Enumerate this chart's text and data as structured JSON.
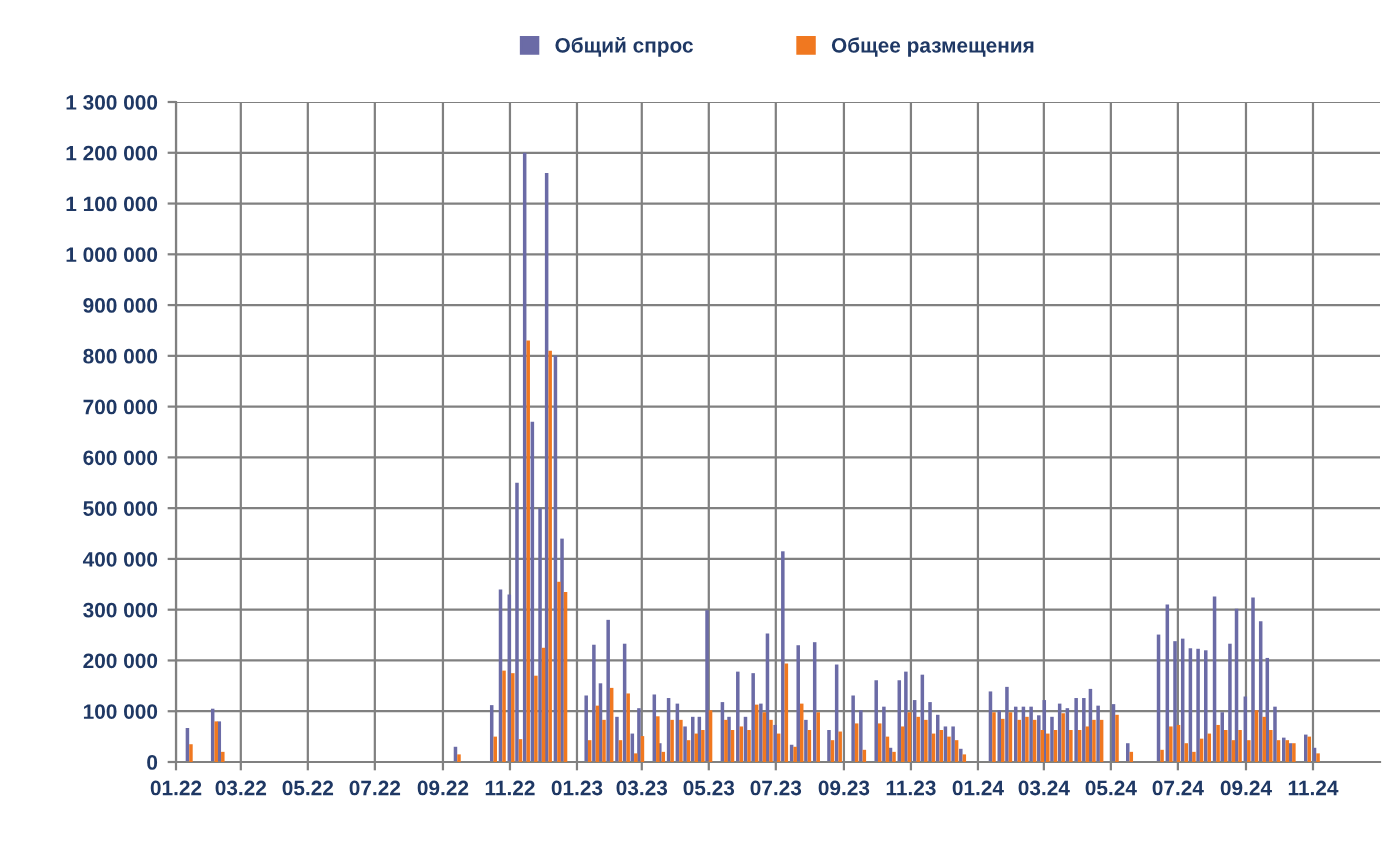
{
  "chart_data": {
    "type": "bar",
    "stacked": false,
    "legend": "top",
    "grid": true,
    "x": [
      "2022-01-13",
      "2022-02-05",
      "2022-02-11",
      "2022-09-14",
      "2022-10-17",
      "2022-10-25",
      "2022-11-02",
      "2022-11-09",
      "2022-11-16",
      "2022-11-23",
      "2022-11-30",
      "2022-12-06",
      "2022-12-14",
      "2022-12-20",
      "2023-01-11",
      "2023-01-18",
      "2023-01-24",
      "2023-01-31",
      "2023-02-08",
      "2023-02-15",
      "2023-02-22",
      "2023-02-28",
      "2023-03-14",
      "2023-03-19",
      "2023-03-27",
      "2023-04-04",
      "2023-04-11",
      "2023-04-18",
      "2023-04-24",
      "2023-05-01",
      "2023-05-15",
      "2023-05-21",
      "2023-05-29",
      "2023-06-05",
      "2023-06-12",
      "2023-06-19",
      "2023-06-25",
      "2023-07-02",
      "2023-07-09",
      "2023-07-17",
      "2023-07-23",
      "2023-07-30",
      "2023-08-07",
      "2023-08-20",
      "2023-08-27",
      "2023-09-11",
      "2023-09-18",
      "2023-10-02",
      "2023-10-09",
      "2023-10-15",
      "2023-10-23",
      "2023-10-29",
      "2023-11-06",
      "2023-11-13",
      "2023-11-20",
      "2023-11-27",
      "2023-12-04",
      "2023-12-11",
      "2023-12-18",
      "2024-01-14",
      "2024-01-22",
      "2024-01-29",
      "2024-02-06",
      "2024-02-13",
      "2024-02-20",
      "2024-02-27",
      "2024-03-03",
      "2024-03-10",
      "2024-03-17",
      "2024-03-24",
      "2024-04-01",
      "2024-04-08",
      "2024-04-14",
      "2024-04-21",
      "2024-05-05",
      "2024-05-18",
      "2024-06-15",
      "2024-06-23",
      "2024-06-30",
      "2024-07-07",
      "2024-07-14",
      "2024-07-21",
      "2024-07-28",
      "2024-08-05",
      "2024-08-12",
      "2024-08-19",
      "2024-08-25",
      "2024-09-02",
      "2024-09-09",
      "2024-09-16",
      "2024-09-22",
      "2024-09-29",
      "2024-10-07",
      "2024-10-13",
      "2024-10-27",
      "2024-11-04"
    ],
    "series": [
      {
        "name": "Общий спрос",
        "color": "#6b6ba6",
        "values": [
          67000,
          105000,
          80000,
          30000,
          112000,
          340000,
          330000,
          550000,
          1200000,
          670000,
          500000,
          1160000,
          800000,
          440000,
          131000,
          231000,
          155000,
          280000,
          89000,
          233000,
          56000,
          106000,
          133000,
          37000,
          126000,
          115000,
          70000,
          89000,
          89000,
          299000,
          118000,
          89000,
          178000,
          89000,
          175000,
          115000,
          253000,
          73000,
          415000,
          34000,
          230000,
          83000,
          236000,
          63000,
          192000,
          131000,
          102000,
          161000,
          109000,
          28000,
          161000,
          178000,
          122000,
          172000,
          118000,
          93000,
          70000,
          70000,
          26000,
          139000,
          102000,
          148000,
          109000,
          109000,
          109000,
          92000,
          122000,
          89000,
          115000,
          106000,
          126000,
          126000,
          144000,
          111000,
          114000,
          37000,
          251000,
          310000,
          238000,
          243000,
          224000,
          223000,
          220000,
          326000,
          98000,
          233000,
          302000,
          129000,
          324000,
          277000,
          205000,
          109000,
          48000,
          37000,
          54000,
          28000
        ]
      },
      {
        "name": "Общее размещения",
        "color": "#f07820",
        "values": [
          35000,
          80000,
          20000,
          15000,
          50000,
          180000,
          175000,
          45000,
          830000,
          170000,
          225000,
          810000,
          355000,
          335000,
          43000,
          111000,
          83000,
          146000,
          43000,
          135000,
          17000,
          51000,
          90000,
          20000,
          83000,
          83000,
          43000,
          56000,
          63000,
          102000,
          83000,
          63000,
          70000,
          63000,
          113000,
          98000,
          83000,
          56000,
          194000,
          30000,
          115000,
          63000,
          98000,
          43000,
          60000,
          76000,
          24000,
          76000,
          50000,
          20000,
          70000,
          98000,
          89000,
          83000,
          56000,
          63000,
          50000,
          43000,
          15000,
          98000,
          85000,
          98000,
          83000,
          89000,
          83000,
          63000,
          56000,
          63000,
          96000,
          63000,
          63000,
          70000,
          83000,
          83000,
          93000,
          20000,
          24000,
          70000,
          73000,
          37000,
          20000,
          46000,
          56000,
          73000,
          63000,
          43000,
          63000,
          43000,
          102000,
          89000,
          63000,
          43000,
          43000,
          37000,
          50000,
          17000
        ]
      }
    ],
    "xlim": [
      "2022-01-01",
      "2025-01-01"
    ],
    "xticks": [
      {
        "value": "2022-01-01",
        "label": "01.22"
      },
      {
        "value": "2022-03-01",
        "label": "03.22"
      },
      {
        "value": "2022-05-01",
        "label": "05.22"
      },
      {
        "value": "2022-07-01",
        "label": "07.22"
      },
      {
        "value": "2022-09-01",
        "label": "09.22"
      },
      {
        "value": "2022-11-01",
        "label": "11.22"
      },
      {
        "value": "2023-01-01",
        "label": "01.23"
      },
      {
        "value": "2023-03-01",
        "label": "03.23"
      },
      {
        "value": "2023-05-01",
        "label": "05.23"
      },
      {
        "value": "2023-07-01",
        "label": "07.23"
      },
      {
        "value": "2023-09-01",
        "label": "09.23"
      },
      {
        "value": "2023-11-01",
        "label": "11.23"
      },
      {
        "value": "2024-01-01",
        "label": "01.24"
      },
      {
        "value": "2024-03-01",
        "label": "03.24"
      },
      {
        "value": "2024-05-01",
        "label": "05.24"
      },
      {
        "value": "2024-07-01",
        "label": "07.24"
      },
      {
        "value": "2024-09-01",
        "label": "09.24"
      },
      {
        "value": "2024-11-01",
        "label": "11.24"
      }
    ],
    "ylim": [
      0,
      1300000
    ],
    "yticks": [
      0,
      {
        "value": 100000,
        "label": "100 000"
      },
      {
        "value": 200000,
        "label": "200 000"
      },
      {
        "value": 300000,
        "label": "300 000"
      },
      {
        "value": 400000,
        "label": "400 000"
      },
      {
        "value": 500000,
        "label": "500 000"
      },
      {
        "value": 600000,
        "label": "600 000"
      },
      {
        "value": 700000,
        "label": "700 000"
      },
      {
        "value": 800000,
        "label": "800 000"
      },
      {
        "value": 900000,
        "label": "900 000"
      },
      {
        "value": 1000000,
        "label": "1 000 000"
      },
      {
        "value": 1100000,
        "label": "1 100 000"
      },
      {
        "value": 1200000,
        "label": "1 200 000"
      },
      {
        "value": 1300000,
        "label": "1 300 000"
      }
    ]
  }
}
